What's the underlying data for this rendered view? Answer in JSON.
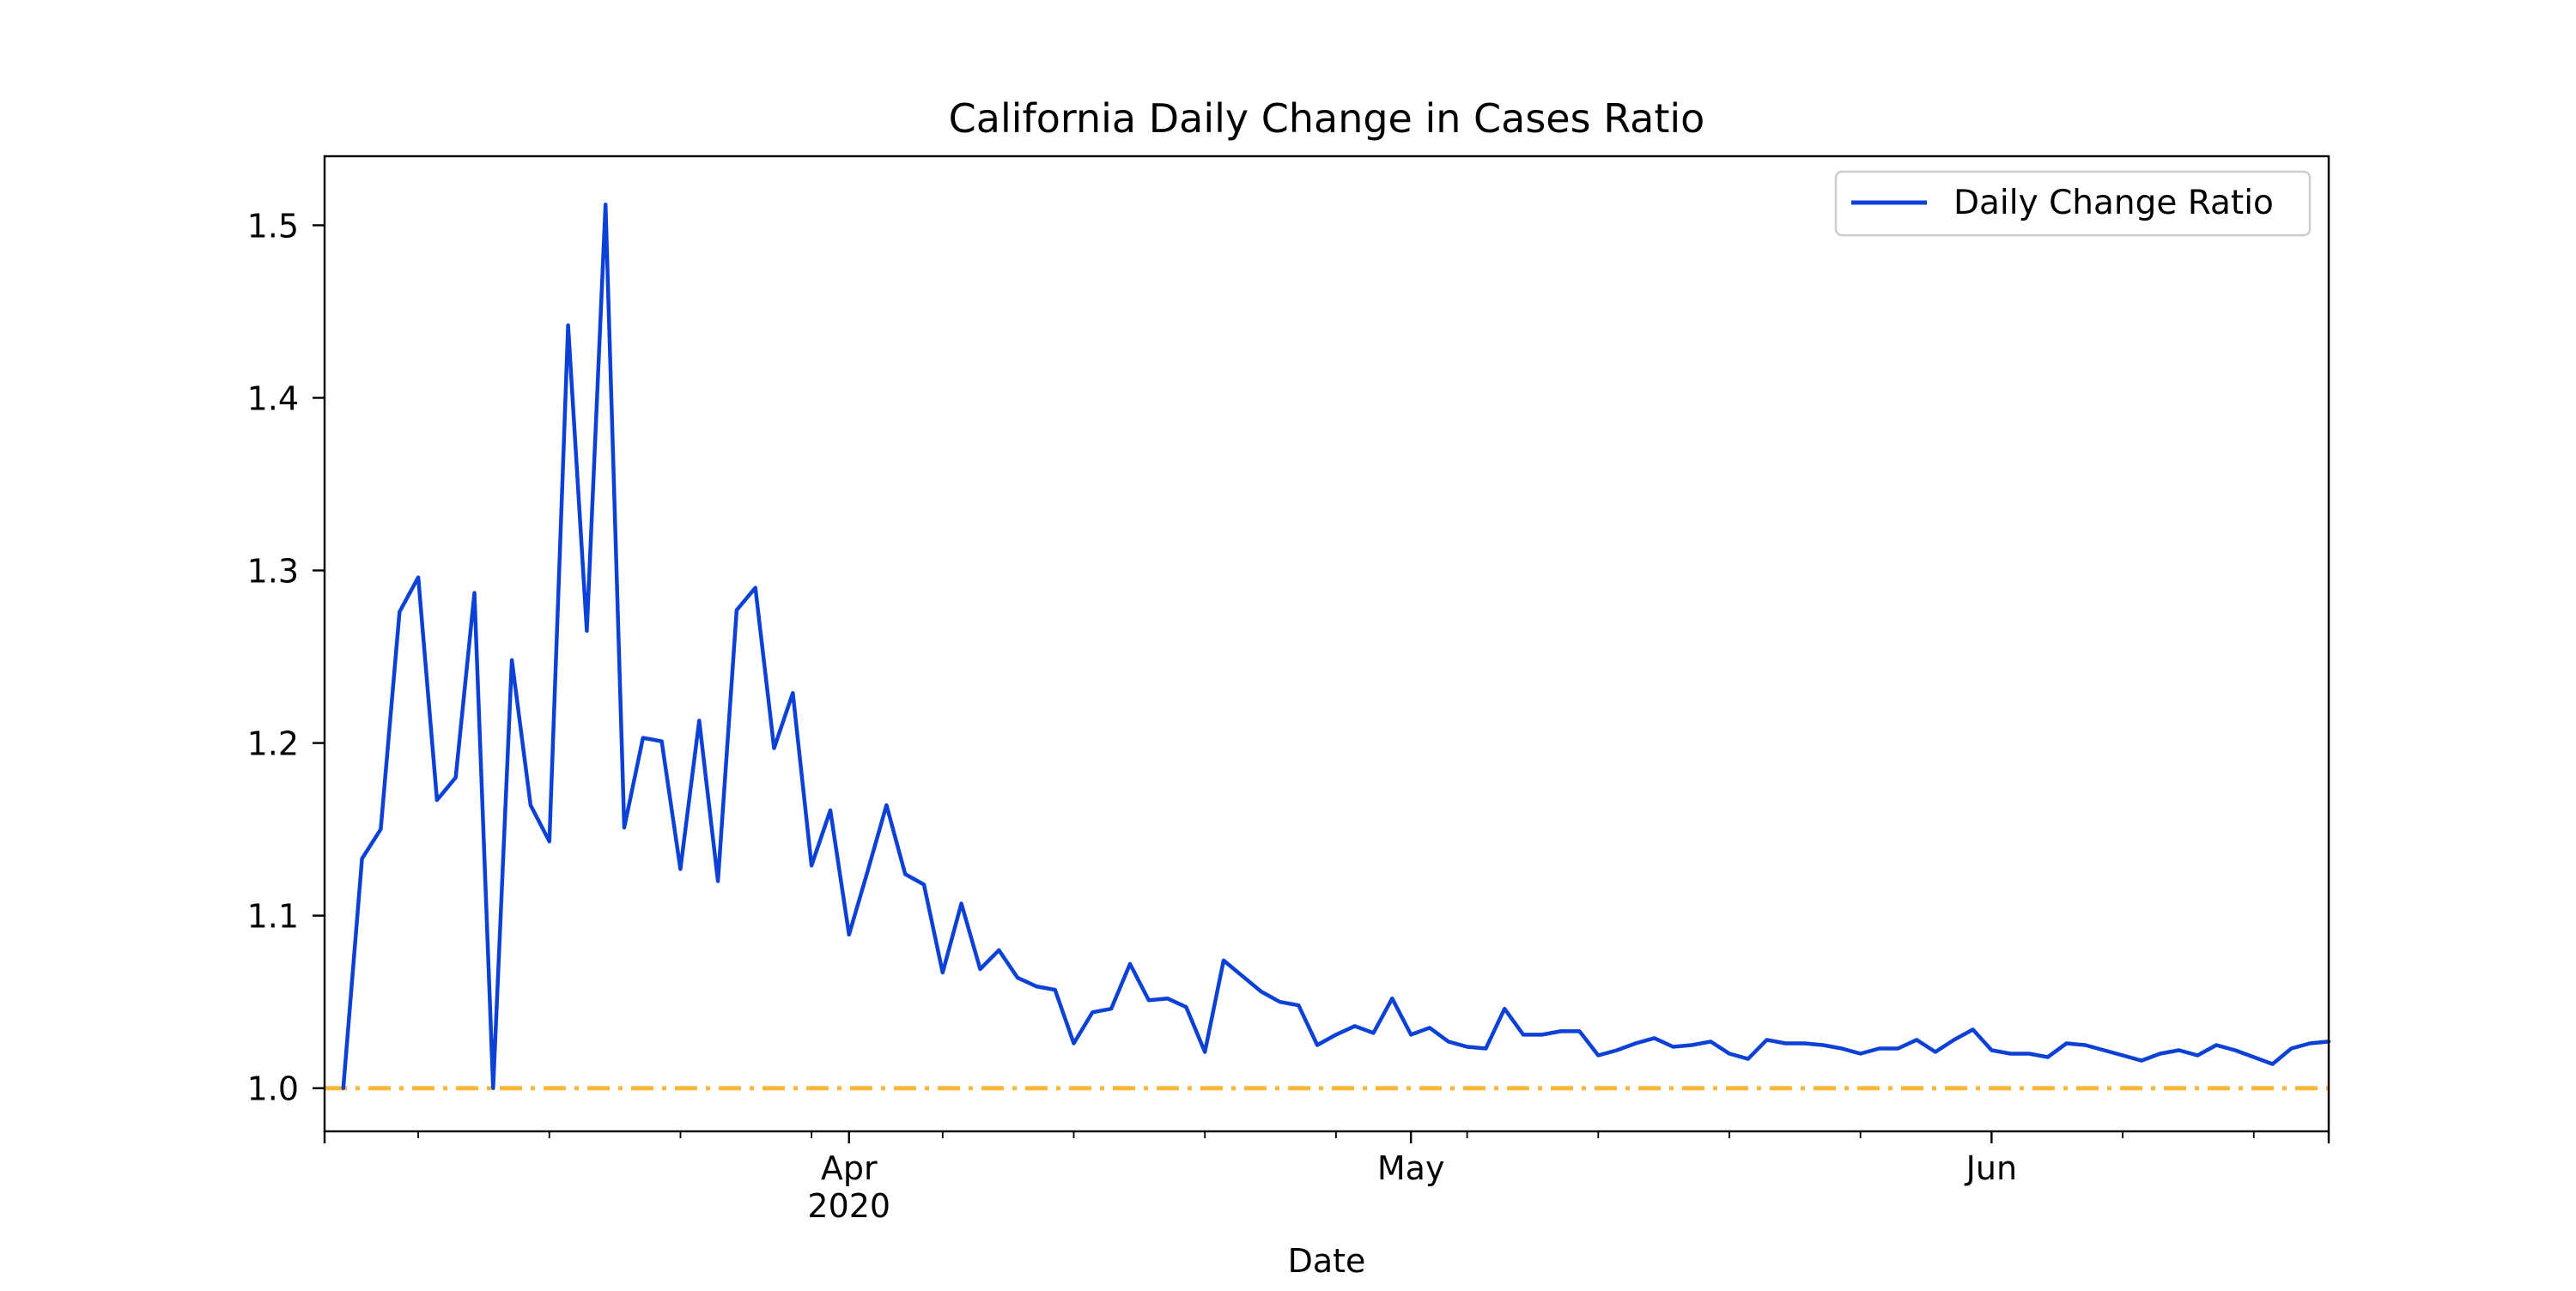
{
  "chart_data": {
    "type": "line",
    "title": "California Daily Change in Cases Ratio",
    "xlabel": "Date",
    "ylabel": "",
    "x_range": [
      "2020-03-04",
      "2020-06-19"
    ],
    "ylim": [
      0.975,
      1.54
    ],
    "x_ticks": [
      {
        "date": "2020-04-01",
        "label": "Apr",
        "sublabel": "2020"
      },
      {
        "date": "2020-05-01",
        "label": "May",
        "sublabel": ""
      },
      {
        "date": "2020-06-01",
        "label": "Jun",
        "sublabel": ""
      }
    ],
    "x_minor_ticks": [
      "2020-03-09",
      "2020-03-16",
      "2020-03-23",
      "2020-03-30",
      "2020-04-06",
      "2020-04-13",
      "2020-04-20",
      "2020-04-27",
      "2020-05-04",
      "2020-05-11",
      "2020-05-18",
      "2020-05-25",
      "2020-06-08",
      "2020-06-15"
    ],
    "y_ticks": [
      1.0,
      1.1,
      1.2,
      1.3,
      1.4,
      1.5
    ],
    "y_tick_labels": [
      "1.0",
      "1.1",
      "1.2",
      "1.3",
      "1.4",
      "1.5"
    ],
    "grid": false,
    "legend_position": "top-right",
    "reference_line": {
      "y": 1.0,
      "color": "#ffb739",
      "style": "dash-dot"
    },
    "series": [
      {
        "name": "Daily Change Ratio",
        "color": "#0c41d8",
        "x": [
          "2020-03-05",
          "2020-03-06",
          "2020-03-07",
          "2020-03-08",
          "2020-03-09",
          "2020-03-10",
          "2020-03-11",
          "2020-03-12",
          "2020-03-13",
          "2020-03-14",
          "2020-03-15",
          "2020-03-16",
          "2020-03-17",
          "2020-03-18",
          "2020-03-19",
          "2020-03-20",
          "2020-03-21",
          "2020-03-22",
          "2020-03-23",
          "2020-03-24",
          "2020-03-25",
          "2020-03-26",
          "2020-03-27",
          "2020-03-28",
          "2020-03-29",
          "2020-03-30",
          "2020-03-31",
          "2020-04-01",
          "2020-04-02",
          "2020-04-03",
          "2020-04-04",
          "2020-04-05",
          "2020-04-06",
          "2020-04-07",
          "2020-04-08",
          "2020-04-09",
          "2020-04-10",
          "2020-04-11",
          "2020-04-12",
          "2020-04-13",
          "2020-04-14",
          "2020-04-15",
          "2020-04-16",
          "2020-04-17",
          "2020-04-18",
          "2020-04-19",
          "2020-04-20",
          "2020-04-21",
          "2020-04-22",
          "2020-04-23",
          "2020-04-24",
          "2020-04-25",
          "2020-04-26",
          "2020-04-27",
          "2020-04-28",
          "2020-04-29",
          "2020-04-30",
          "2020-05-01",
          "2020-05-02",
          "2020-05-03",
          "2020-05-04",
          "2020-05-05",
          "2020-05-06",
          "2020-05-07",
          "2020-05-08",
          "2020-05-09",
          "2020-05-10",
          "2020-05-11",
          "2020-05-12",
          "2020-05-13",
          "2020-05-14",
          "2020-05-15",
          "2020-05-16",
          "2020-05-17",
          "2020-05-18",
          "2020-05-19",
          "2020-05-20",
          "2020-05-21",
          "2020-05-22",
          "2020-05-23",
          "2020-05-24",
          "2020-05-25",
          "2020-05-26",
          "2020-05-27",
          "2020-05-28",
          "2020-05-29",
          "2020-05-30",
          "2020-05-31",
          "2020-06-01",
          "2020-06-02",
          "2020-06-03",
          "2020-06-04",
          "2020-06-05",
          "2020-06-06",
          "2020-06-07",
          "2020-06-08",
          "2020-06-09",
          "2020-06-10",
          "2020-06-11",
          "2020-06-12",
          "2020-06-13",
          "2020-06-14",
          "2020-06-15",
          "2020-06-16",
          "2020-06-17",
          "2020-06-18",
          "2020-06-19"
        ],
        "values": [
          1.0,
          1.133,
          1.15,
          1.276,
          1.296,
          1.167,
          1.18,
          1.287,
          1.0,
          1.248,
          1.164,
          1.143,
          1.442,
          1.265,
          1.512,
          1.151,
          1.203,
          1.201,
          1.127,
          1.213,
          1.12,
          1.277,
          1.29,
          1.197,
          1.229,
          1.129,
          1.161,
          1.089,
          1.126,
          1.164,
          1.124,
          1.118,
          1.067,
          1.107,
          1.069,
          1.08,
          1.064,
          1.059,
          1.057,
          1.026,
          1.044,
          1.046,
          1.072,
          1.051,
          1.052,
          1.047,
          1.021,
          1.074,
          1.065,
          1.056,
          1.05,
          1.048,
          1.025,
          1.031,
          1.036,
          1.032,
          1.052,
          1.031,
          1.035,
          1.027,
          1.024,
          1.023,
          1.046,
          1.031,
          1.031,
          1.033,
          1.033,
          1.019,
          1.022,
          1.026,
          1.029,
          1.024,
          1.025,
          1.027,
          1.02,
          1.017,
          1.028,
          1.026,
          1.026,
          1.025,
          1.023,
          1.02,
          1.023,
          1.023,
          1.028,
          1.021,
          1.028,
          1.034,
          1.022,
          1.02,
          1.02,
          1.018,
          1.026,
          1.025,
          1.022,
          1.019,
          1.016,
          1.02,
          1.022,
          1.019,
          1.025,
          1.022,
          1.018,
          1.014,
          1.023,
          1.026,
          1.027
        ]
      }
    ]
  }
}
